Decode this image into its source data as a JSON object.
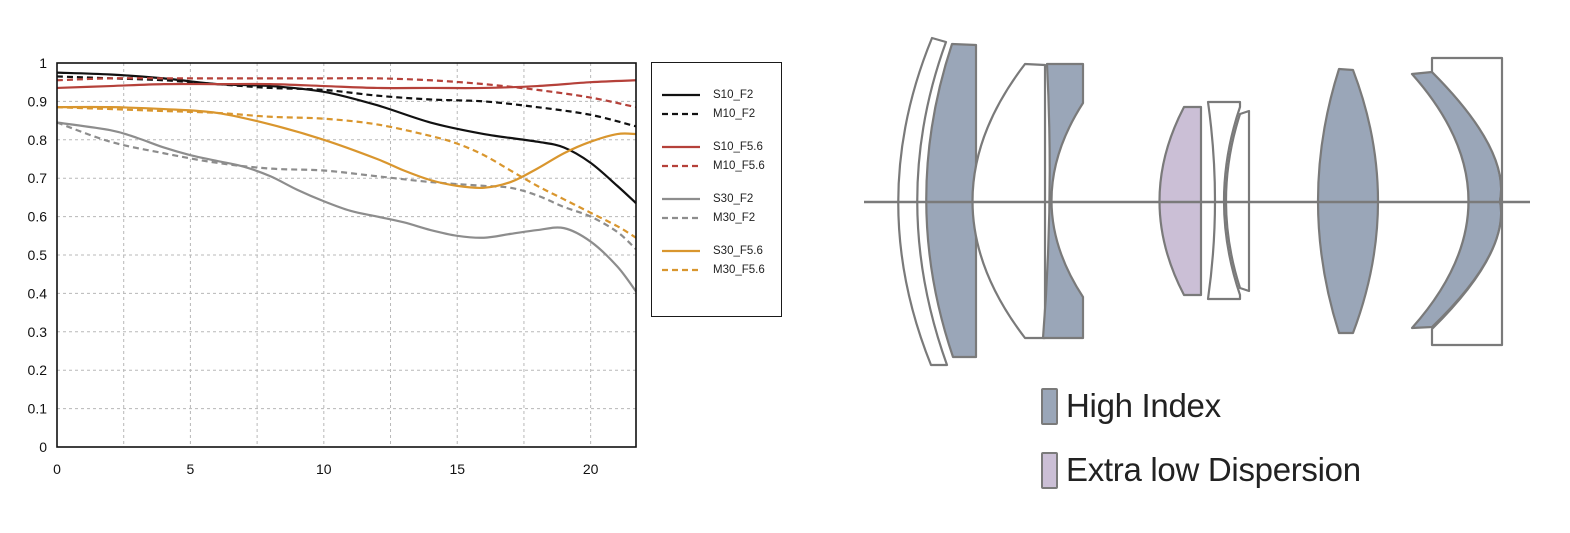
{
  "chart_data": {
    "type": "line",
    "xlim": [
      0,
      21.7
    ],
    "ylim": [
      0,
      1
    ],
    "x_ticks": [
      "0",
      "5",
      "10",
      "15",
      "20"
    ],
    "x_tick_values": [
      0,
      5,
      10,
      15,
      20
    ],
    "y_ticks": [
      "0",
      "0.1",
      "0.2",
      "0.3",
      "0.4",
      "0.5",
      "0.6",
      "0.7",
      "0.8",
      "0.9",
      "1"
    ],
    "y_tick_values": [
      0,
      0.1,
      0.2,
      0.3,
      0.4,
      0.5,
      0.6,
      0.7,
      0.8,
      0.9,
      1
    ],
    "x_grid_step": 2.5,
    "y_grid_step": 0.1,
    "grid": true,
    "legend_position": "right",
    "series": [
      {
        "name": "S10_F2",
        "color": "#111111",
        "dash": "solid",
        "points": [
          [
            0,
            0.975
          ],
          [
            2,
            0.97
          ],
          [
            4,
            0.96
          ],
          [
            6,
            0.945
          ],
          [
            8,
            0.94
          ],
          [
            10,
            0.925
          ],
          [
            12,
            0.89
          ],
          [
            14,
            0.845
          ],
          [
            16,
            0.815
          ],
          [
            18,
            0.795
          ],
          [
            19,
            0.78
          ],
          [
            20,
            0.74
          ],
          [
            21,
            0.68
          ],
          [
            21.7,
            0.635
          ]
        ]
      },
      {
        "name": "M10_F2",
        "color": "#111111",
        "dash": "dashed",
        "points": [
          [
            0,
            0.965
          ],
          [
            2,
            0.96
          ],
          [
            4,
            0.955
          ],
          [
            6,
            0.945
          ],
          [
            8,
            0.935
          ],
          [
            10,
            0.93
          ],
          [
            12,
            0.915
          ],
          [
            14,
            0.905
          ],
          [
            16,
            0.9
          ],
          [
            18,
            0.885
          ],
          [
            20,
            0.865
          ],
          [
            21.7,
            0.835
          ]
        ]
      },
      {
        "name": "S10_F5.6",
        "color": "#b5413a",
        "dash": "solid",
        "points": [
          [
            0,
            0.935
          ],
          [
            2,
            0.94
          ],
          [
            4,
            0.945
          ],
          [
            6,
            0.945
          ],
          [
            8,
            0.945
          ],
          [
            10,
            0.94
          ],
          [
            12,
            0.935
          ],
          [
            14,
            0.935
          ],
          [
            16,
            0.935
          ],
          [
            18,
            0.94
          ],
          [
            20,
            0.95
          ],
          [
            21.7,
            0.955
          ]
        ]
      },
      {
        "name": "M10_F5.6",
        "color": "#b5413a",
        "dash": "dashed",
        "points": [
          [
            0,
            0.955
          ],
          [
            2,
            0.96
          ],
          [
            4,
            0.96
          ],
          [
            6,
            0.96
          ],
          [
            8,
            0.96
          ],
          [
            10,
            0.96
          ],
          [
            12,
            0.96
          ],
          [
            14,
            0.955
          ],
          [
            16,
            0.945
          ],
          [
            18,
            0.93
          ],
          [
            20,
            0.91
          ],
          [
            21.7,
            0.885
          ]
        ]
      },
      {
        "name": "S30_F2",
        "color": "#8d8d8d",
        "dash": "solid",
        "points": [
          [
            0,
            0.845
          ],
          [
            2,
            0.825
          ],
          [
            3,
            0.805
          ],
          [
            4,
            0.78
          ],
          [
            5,
            0.76
          ],
          [
            6,
            0.745
          ],
          [
            7,
            0.73
          ],
          [
            8,
            0.705
          ],
          [
            9,
            0.67
          ],
          [
            10,
            0.64
          ],
          [
            11,
            0.615
          ],
          [
            12,
            0.6
          ],
          [
            13,
            0.585
          ],
          [
            14,
            0.565
          ],
          [
            15,
            0.55
          ],
          [
            16,
            0.545
          ],
          [
            17,
            0.555
          ],
          [
            18,
            0.565
          ],
          [
            19,
            0.57
          ],
          [
            20,
            0.535
          ],
          [
            21,
            0.47
          ],
          [
            21.7,
            0.405
          ]
        ]
      },
      {
        "name": "M30_F2",
        "color": "#8d8d8d",
        "dash": "dashed",
        "points": [
          [
            0,
            0.845
          ],
          [
            2,
            0.795
          ],
          [
            4,
            0.765
          ],
          [
            6,
            0.74
          ],
          [
            8,
            0.725
          ],
          [
            10,
            0.72
          ],
          [
            12,
            0.705
          ],
          [
            14,
            0.69
          ],
          [
            16,
            0.68
          ],
          [
            17,
            0.675
          ],
          [
            18,
            0.655
          ],
          [
            19,
            0.625
          ],
          [
            20,
            0.6
          ],
          [
            21,
            0.56
          ],
          [
            21.7,
            0.515
          ]
        ]
      },
      {
        "name": "S30_F5.6",
        "color": "#d9962e",
        "dash": "solid",
        "points": [
          [
            0,
            0.885
          ],
          [
            2,
            0.885
          ],
          [
            4,
            0.88
          ],
          [
            6,
            0.87
          ],
          [
            8,
            0.84
          ],
          [
            10,
            0.8
          ],
          [
            12,
            0.75
          ],
          [
            13,
            0.72
          ],
          [
            14,
            0.695
          ],
          [
            15,
            0.68
          ],
          [
            16,
            0.675
          ],
          [
            17,
            0.69
          ],
          [
            18,
            0.725
          ],
          [
            19,
            0.765
          ],
          [
            20,
            0.795
          ],
          [
            21,
            0.815
          ],
          [
            21.7,
            0.815
          ]
        ]
      },
      {
        "name": "M30_F5.6",
        "color": "#d9962e",
        "dash": "dashed",
        "points": [
          [
            0,
            0.885
          ],
          [
            2,
            0.88
          ],
          [
            4,
            0.875
          ],
          [
            6,
            0.87
          ],
          [
            8,
            0.86
          ],
          [
            10,
            0.855
          ],
          [
            12,
            0.84
          ],
          [
            14,
            0.81
          ],
          [
            15,
            0.79
          ],
          [
            16,
            0.76
          ],
          [
            17,
            0.72
          ],
          [
            18,
            0.68
          ],
          [
            19,
            0.645
          ],
          [
            20,
            0.61
          ],
          [
            21,
            0.575
          ],
          [
            21.7,
            0.545
          ]
        ]
      }
    ]
  },
  "legend": {
    "items": [
      {
        "label": "S10_F2",
        "color": "#111111",
        "dash": "solid"
      },
      {
        "label": "M10_F2",
        "color": "#111111",
        "dash": "dashed"
      },
      {
        "label": "S10_F5.6",
        "color": "#b5413a",
        "dash": "solid"
      },
      {
        "label": "M10_F5.6",
        "color": "#b5413a",
        "dash": "dashed"
      },
      {
        "label": "S30_F2",
        "color": "#8d8d8d",
        "dash": "solid"
      },
      {
        "label": "M30_F2",
        "color": "#8d8d8d",
        "dash": "dashed"
      },
      {
        "label": "S30_F5.6",
        "color": "#d9962e",
        "dash": "solid"
      },
      {
        "label": "M30_F5.6",
        "color": "#d9962e",
        "dash": "dashed"
      }
    ]
  },
  "lens_legend": {
    "high_index": {
      "label": "High Index",
      "color": "#9aa6b8"
    },
    "extra_low_dispersion": {
      "label": "Extra low Dispersion",
      "color": "#cbbfd6"
    }
  },
  "lens_colors": {
    "outline": "#7a7a7a",
    "high_index": "#9aa6b8",
    "ed": "#cbbfd6",
    "plain": "#ffffff"
  }
}
